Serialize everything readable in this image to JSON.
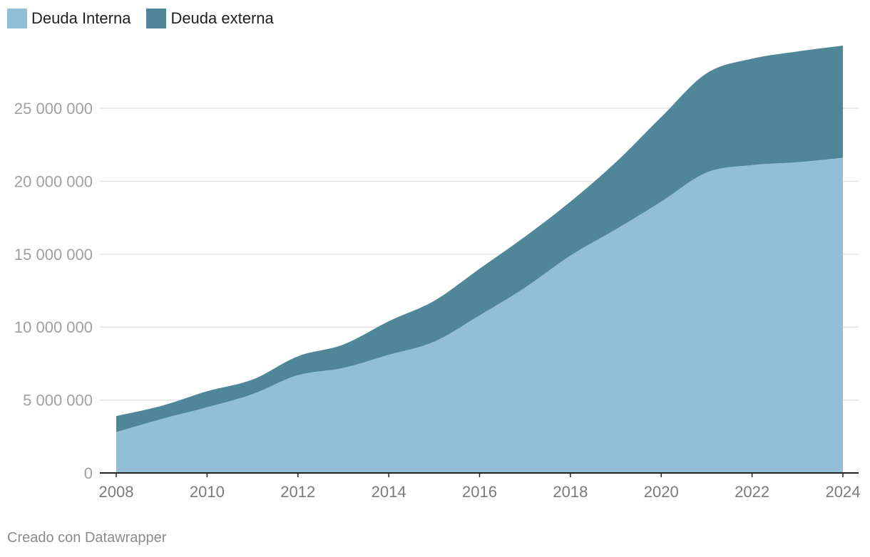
{
  "legend": [
    {
      "label": "Deuda Interna",
      "color": "#93bfd6"
    },
    {
      "label": "Deuda externa",
      "color": "#4f8799"
    }
  ],
  "credit": "Creado con Datawrapper",
  "chart_data": {
    "type": "area",
    "stacked": true,
    "x": [
      2008,
      2009,
      2010,
      2011,
      2012,
      2013,
      2014,
      2015,
      2016,
      2017,
      2018,
      2019,
      2020,
      2021,
      2022,
      2023,
      2024
    ],
    "series": [
      {
        "name": "Deuda Interna",
        "color": "#93bfd6",
        "values": [
          2800000,
          3700000,
          4500000,
          5400000,
          6700000,
          7200000,
          8100000,
          9000000,
          10800000,
          12700000,
          14900000,
          16700000,
          18600000,
          20600000,
          21100000,
          21300000,
          21600000
        ]
      },
      {
        "name": "Deuda externa",
        "color": "#4f8799",
        "values": [
          1100000,
          900000,
          1100000,
          1000000,
          1300000,
          1600000,
          2300000,
          2800000,
          3200000,
          3500000,
          3700000,
          4600000,
          5800000,
          6800000,
          7300000,
          7600000,
          7700000
        ]
      }
    ],
    "ylim": [
      0,
      29300000
    ],
    "yticks": [
      {
        "value": 0,
        "label": "0"
      },
      {
        "value": 5000000,
        "label": "5 000 000"
      },
      {
        "value": 10000000,
        "label": "10 000 000"
      },
      {
        "value": 15000000,
        "label": "15 000 000"
      },
      {
        "value": 20000000,
        "label": "20 000 000"
      },
      {
        "value": 25000000,
        "label": "25 000 000"
      }
    ],
    "xticks": [
      2008,
      2010,
      2012,
      2014,
      2016,
      2018,
      2020,
      2022,
      2024
    ],
    "grid": true,
    "legend_position": "top-left"
  }
}
